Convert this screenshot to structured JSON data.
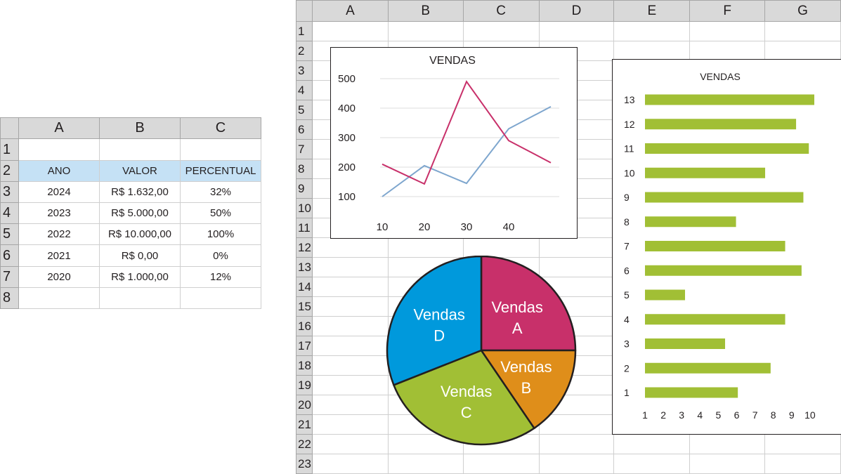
{
  "left_sheet": {
    "columns": [
      "A",
      "B",
      "C"
    ],
    "rows": [
      "1",
      "2",
      "3",
      "4",
      "5",
      "6",
      "7",
      "8"
    ],
    "headers": {
      "ano": "ANO",
      "valor": "VALOR",
      "percentual": "PERCENTUAL"
    },
    "records": [
      {
        "ano": "2024",
        "valor": "R$ 1.632,00",
        "percentual": "32%"
      },
      {
        "ano": "2023",
        "valor": "R$ 5.000,00",
        "percentual": "50%"
      },
      {
        "ano": "2022",
        "valor": "R$ 10.000,00",
        "percentual": "100%"
      },
      {
        "ano": "2021",
        "valor": "R$ 0,00",
        "percentual": "0%"
      },
      {
        "ano": "2020",
        "valor": "R$ 1.000,00",
        "percentual": "12%"
      }
    ],
    "highlight_color": "#c5e1f5"
  },
  "right_sheet": {
    "columns": [
      "A",
      "B",
      "C",
      "D",
      "E",
      "F",
      "G"
    ],
    "rows": [
      "1",
      "2",
      "3",
      "4",
      "5",
      "6",
      "7",
      "8",
      "9",
      "10",
      "11",
      "12",
      "13",
      "14",
      "15",
      "16",
      "17",
      "18",
      "19",
      "20",
      "21",
      "22",
      "23"
    ]
  },
  "chart_data": [
    {
      "type": "line",
      "title": "VENDAS",
      "x_tick_labels": [
        "10",
        "20",
        "30",
        "40"
      ],
      "y_tick_labels": [
        "100",
        "200",
        "300",
        "400",
        "500"
      ],
      "x_points": [
        1,
        2,
        3,
        4,
        5
      ],
      "ylim": [
        100,
        500
      ],
      "grid": true,
      "series": [
        {
          "color": "#7ea6ce",
          "values": [
            100,
            205,
            145,
            330,
            405
          ]
        },
        {
          "color": "#c8306a",
          "values": [
            210,
            143,
            490,
            290,
            215
          ]
        }
      ]
    },
    {
      "type": "pie",
      "slices": [
        {
          "label_line1": "Vendas",
          "label_line2": "A",
          "value": 25,
          "color": "#c8306a"
        },
        {
          "label_line1": "Vendas",
          "label_line2": "B",
          "value": 15.5,
          "color": "#df8e1a"
        },
        {
          "label_line1": "Vendas",
          "label_line2": "C",
          "value": 28.5,
          "color": "#a1bf35"
        },
        {
          "label_line1": "Vendas",
          "label_line2": "D",
          "value": 31,
          "color": "#0099dc"
        }
      ]
    },
    {
      "type": "bar",
      "orientation": "horizontal",
      "title": "VENDAS",
      "categories": [
        "13",
        "12",
        "11",
        "10",
        "9",
        "8",
        "7",
        "6",
        "5",
        "4",
        "3",
        "2",
        "1"
      ],
      "values": [
        9.3,
        8.3,
        9.0,
        6.6,
        8.7,
        5.0,
        7.7,
        8.6,
        2.2,
        7.7,
        4.4,
        6.9,
        5.1
      ],
      "x_tick_labels": [
        "1",
        "2",
        "3",
        "4",
        "5",
        "6",
        "7",
        "8",
        "9",
        "10"
      ],
      "xlim": [
        0,
        9.3
      ],
      "bar_color": "#a1bf35"
    }
  ]
}
